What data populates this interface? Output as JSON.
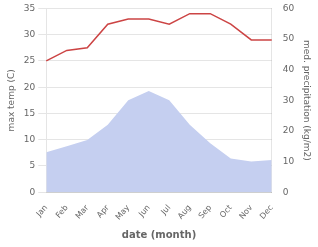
{
  "chart_data": {
    "type": "line",
    "xlabel": "date (month)",
    "ylabel": "max temp (C)",
    "y2label": "med. precipitation (kg/m2)",
    "categories": [
      "Jan",
      "Feb",
      "Mar",
      "Apr",
      "May",
      "Jun",
      "Jul",
      "Aug",
      "Sep",
      "Oct",
      "Nov",
      "Dec"
    ],
    "series": [
      {
        "type": "area",
        "color": "#c5cff0",
        "axis": "y2",
        "values": [
          13,
          15,
          17,
          22,
          30,
          33,
          30,
          22,
          16,
          11,
          10,
          10.5
        ]
      },
      {
        "type": "line",
        "color": "#cc4444",
        "values": [
          25,
          27,
          27.5,
          32,
          33,
          33,
          32,
          34,
          34,
          32,
          29,
          29
        ]
      }
    ],
    "ylim": [
      0,
      35
    ],
    "yticks": [
      0,
      5,
      10,
      15,
      20,
      25,
      30,
      35
    ],
    "y2lim": [
      0,
      60
    ],
    "y2ticks": [
      0,
      10,
      20,
      30,
      40,
      50,
      60
    ],
    "grid": true
  }
}
